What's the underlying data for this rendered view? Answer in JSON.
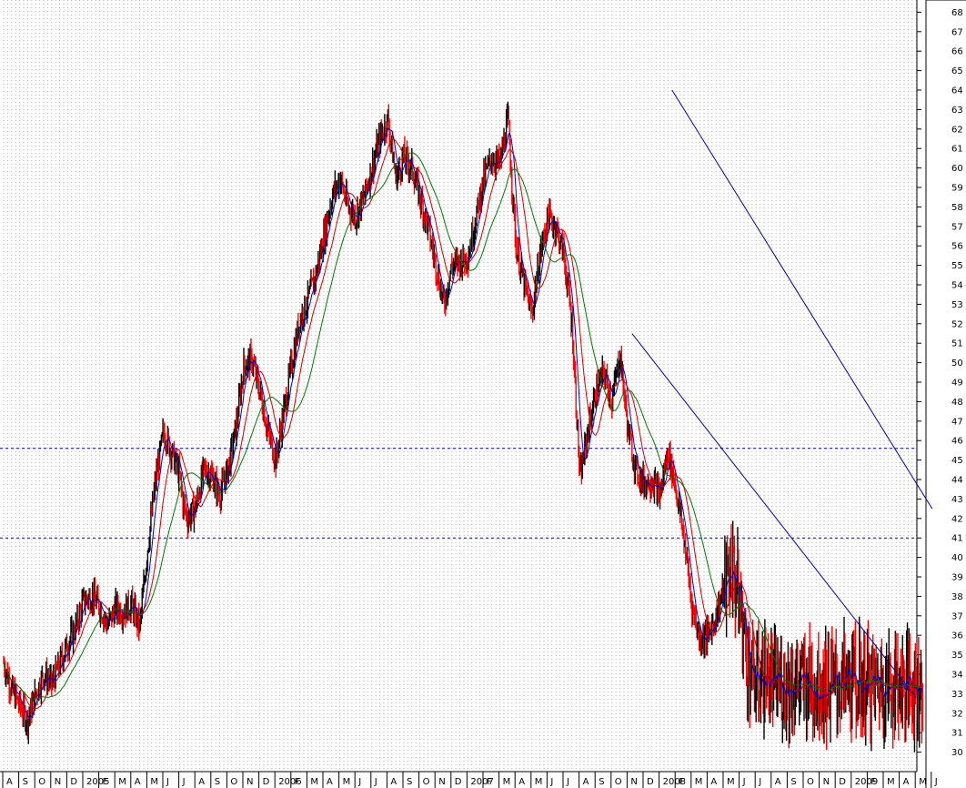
{
  "chart_data": {
    "type": "line",
    "y_axis": {
      "ylim": [
        29,
        68.6
      ],
      "tick_labels": [
        "30",
        "31",
        "32",
        "33",
        "34",
        "35",
        "36",
        "37",
        "38",
        "39",
        "40",
        "41",
        "42",
        "43",
        "44",
        "45",
        "46",
        "47",
        "48",
        "49",
        "50",
        "51",
        "52",
        "53",
        "54",
        "55",
        "56",
        "57",
        "58",
        "59",
        "60",
        "61",
        "62",
        "63",
        "64",
        "65",
        "66",
        "67",
        "68"
      ],
      "position": "right"
    },
    "x_axis": {
      "month_labels": [
        "A",
        "S",
        "O",
        "N",
        "D",
        "2005",
        "F",
        "M",
        "A",
        "M",
        "J",
        "J",
        "A",
        "S",
        "O",
        "N",
        "D",
        "2006",
        "F",
        "M",
        "A",
        "M",
        "J",
        "J",
        "A",
        "S",
        "O",
        "N",
        "D",
        "2007",
        "F",
        "M",
        "A",
        "M",
        "J",
        "J",
        "A",
        "S",
        "O",
        "N",
        "D",
        "2008",
        "F",
        "M",
        "A",
        "M",
        "J",
        "J",
        "A",
        "S",
        "O",
        "N",
        "D",
        "2009",
        "F",
        "M",
        "A",
        "M",
        "J"
      ],
      "start": "2004-08",
      "end": "2009-06"
    },
    "grid": "vertical-dotted",
    "horizontal_lines": [
      45.6,
      41.0
    ],
    "price_series": {
      "name": "",
      "color": "#000000",
      "down_color": "#ff0000",
      "x_month_index": [
        0,
        0.5,
        1,
        1.5,
        2,
        2.5,
        3,
        3.5,
        4,
        4.5,
        5,
        5.5,
        6,
        6.5,
        7,
        7.5,
        8,
        8.5,
        9,
        9.5,
        10,
        10.5,
        11,
        11.2,
        11.5,
        12,
        12.5,
        13,
        13.5,
        14,
        14.5,
        15,
        15.5,
        16,
        16.5,
        17,
        17.5,
        18,
        18.5,
        19,
        19.5,
        20,
        20.5,
        21,
        21.5,
        22,
        22.5,
        23,
        23.5,
        24,
        24.5,
        25,
        25.5,
        26,
        26.5,
        27,
        27.5,
        28,
        28.5,
        29,
        29.5,
        30,
        30.5,
        31,
        31.5,
        32,
        32.5,
        33,
        33.5,
        34,
        34.5,
        35,
        35.5,
        36,
        36.5,
        37,
        37.5,
        38,
        38.5,
        39,
        39.5,
        40,
        40.5,
        41,
        41.5,
        42,
        42.5,
        43,
        43.5,
        44,
        44.5,
        45,
        45.5,
        46,
        46.5,
        47,
        47.5,
        48,
        48.5,
        49,
        49.5,
        50,
        50.5,
        51,
        51.5,
        52,
        52.5,
        53,
        53.5,
        54,
        54.5,
        55,
        55.5,
        56,
        56.5,
        57,
        57.5,
        58
      ],
      "values": [
        34.6,
        33.2,
        32.4,
        31.6,
        33.0,
        34.0,
        33.5,
        34.5,
        35.6,
        36.4,
        37.8,
        38.0,
        37.5,
        36.5,
        37.4,
        37.2,
        37.6,
        36.4,
        40.5,
        44.0,
        46.5,
        45.4,
        44.2,
        42.8,
        42.0,
        42.6,
        44.5,
        44.2,
        43.2,
        44.5,
        46.6,
        49.8,
        50.2,
        48.5,
        46.5,
        45.0,
        47.5,
        50.0,
        52.2,
        53.2,
        54.5,
        56.5,
        58.5,
        59.5,
        58.0,
        57.5,
        58.5,
        60.0,
        61.5,
        62.5,
        59.5,
        60.5,
        60.0,
        58.5,
        57.0,
        55.0,
        53.0,
        55.0,
        55.2,
        55.5,
        57.5,
        59.5,
        60.5,
        60.2,
        62.5,
        56.0,
        54.0,
        52.5,
        55.5,
        57.5,
        57.0,
        55.5,
        52.0,
        44.0,
        46.5,
        48.5,
        49.5,
        48.0,
        50.5,
        46.5,
        44.5,
        43.8,
        44.0,
        43.2,
        45.5,
        43.5,
        41.0,
        37.5,
        35.8,
        36.0,
        37.0,
        38.5,
        39.6,
        37.5,
        34.5,
        33.5,
        34.0,
        33.5,
        33.5,
        33.5,
        33.5,
        33.5,
        33.5,
        33.5,
        33.5,
        33.5,
        33.5,
        33.5,
        33.5,
        33.5,
        33.5,
        33.5,
        33.5,
        33.5,
        33.5,
        33.5,
        33.5,
        33.5,
        33.5,
        33.5
      ]
    },
    "moving_averages": [
      {
        "name": "",
        "color": "#0000cc"
      },
      {
        "name": "",
        "color": "#cc0000"
      },
      {
        "name": "",
        "color": "#007700"
      }
    ],
    "trend_channel": {
      "color": "#0000aa",
      "upper": [
        [
          41.75,
          64.0
        ],
        [
          58.0,
          42.5
        ]
      ],
      "lower": [
        [
          39.25,
          51.5
        ],
        [
          57.0,
          32.8
        ]
      ]
    }
  }
}
